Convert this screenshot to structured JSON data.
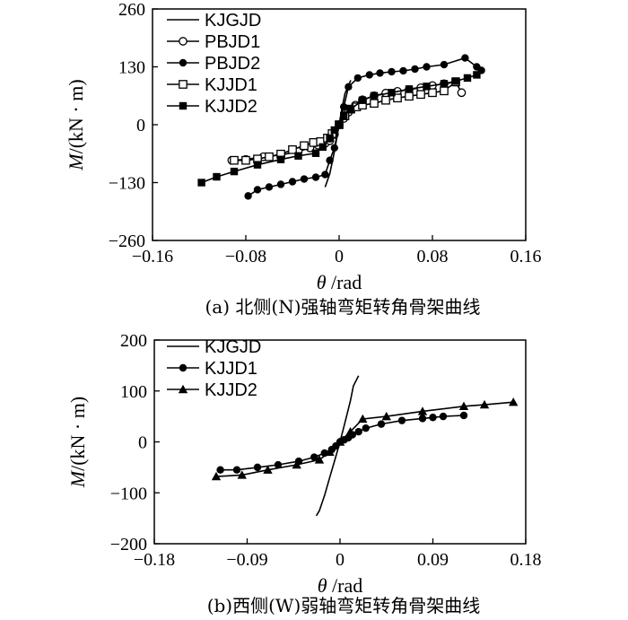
{
  "chart_data": [
    {
      "type": "line",
      "title": "(a) 北侧(N)强轴弯矩转角骨架曲线",
      "xlabel": "θ/rad",
      "ylabel": "M/(kN·m)",
      "xlim": [
        -0.16,
        0.16
      ],
      "ylim": [
        -260,
        260
      ],
      "xticks": [
        -0.16,
        -0.08,
        0,
        0.08,
        0.16
      ],
      "xtick_labels": [
        "−0.16",
        "−0.08",
        "0",
        "0.08",
        "0.16"
      ],
      "yticks": [
        -260,
        -130,
        0,
        130,
        260
      ],
      "ytick_labels": [
        "−260",
        "−130",
        "0",
        "130",
        "260"
      ],
      "grid": false,
      "legend_position": "top-left",
      "series": [
        {
          "name": "KJGJD",
          "marker": "none",
          "x": [
            -0.012,
            -0.008,
            -0.004,
            -0.002,
            0,
            0.002,
            0.005,
            0.01
          ],
          "y": [
            -140,
            -110,
            -60,
            -30,
            0,
            30,
            70,
            100
          ]
        },
        {
          "name": "PBJD1",
          "marker": "open-circle",
          "x": [
            -0.092,
            -0.08,
            -0.065,
            -0.05,
            -0.035,
            -0.025,
            -0.018,
            -0.012,
            -0.008,
            -0.004,
            0,
            0.004,
            0.008,
            0.014,
            0.02,
            0.03,
            0.04,
            0.05,
            0.06,
            0.07,
            0.08,
            0.09,
            0.1,
            0.105
          ],
          "y": [
            -80,
            -78,
            -72,
            -68,
            -60,
            -52,
            -46,
            -42,
            -36,
            -22,
            0,
            14,
            28,
            44,
            56,
            65,
            71,
            75,
            79,
            83,
            88,
            92,
            96,
            72
          ]
        },
        {
          "name": "PBJD2",
          "marker": "filled-circle",
          "x": [
            -0.078,
            -0.07,
            -0.06,
            -0.05,
            -0.04,
            -0.03,
            -0.02,
            -0.012,
            -0.008,
            -0.004,
            0,
            0.004,
            0.008,
            0.016,
            0.026,
            0.035,
            0.045,
            0.055,
            0.065,
            0.075,
            0.09,
            0.108,
            0.118,
            0.122
          ],
          "y": [
            -160,
            -146,
            -140,
            -134,
            -128,
            -122,
            -118,
            -112,
            -80,
            -52,
            0,
            40,
            85,
            105,
            112,
            116,
            119,
            121,
            125,
            130,
            135,
            150,
            130,
            122
          ]
        },
        {
          "name": "KJJD1",
          "marker": "open-square",
          "x": [
            -0.09,
            -0.08,
            -0.07,
            -0.06,
            -0.05,
            -0.04,
            -0.03,
            -0.022,
            -0.016,
            -0.01,
            -0.006,
            0,
            0.005,
            0.01,
            0.015,
            0.02,
            0.03,
            0.04,
            0.05,
            0.06,
            0.07,
            0.08,
            0.09,
            0.1
          ],
          "y": [
            -80,
            -80,
            -77,
            -72,
            -66,
            -56,
            -47,
            -40,
            -38,
            -30,
            -20,
            0,
            20,
            35,
            40,
            44,
            48,
            55,
            60,
            64,
            68,
            72,
            76,
            96
          ]
        },
        {
          "name": "KJJD2",
          "marker": "filled-square",
          "x": [
            -0.118,
            -0.105,
            -0.09,
            -0.07,
            -0.05,
            -0.035,
            -0.02,
            -0.014,
            -0.008,
            -0.004,
            0,
            0.004,
            0.01,
            0.02,
            0.03,
            0.045,
            0.06,
            0.075,
            0.09,
            0.1,
            0.11,
            0.118
          ],
          "y": [
            -130,
            -117,
            -105,
            -90,
            -78,
            -70,
            -64,
            -50,
            -30,
            -12,
            0,
            20,
            35,
            55,
            65,
            72,
            80,
            86,
            92,
            98,
            105,
            112
          ]
        }
      ]
    },
    {
      "type": "line",
      "title": "(b)西侧(W)弱轴弯矩转角骨架曲线",
      "xlabel": "θ/rad",
      "ylabel": "M/(kN·m)",
      "xlim": [
        -0.18,
        0.18
      ],
      "ylim": [
        -200,
        200
      ],
      "xticks": [
        -0.18,
        -0.09,
        0,
        0.09,
        0.18
      ],
      "xtick_labels": [
        "−0.18",
        "−0.09",
        "0",
        "0.09",
        "0.18"
      ],
      "yticks": [
        -200,
        -100,
        0,
        100,
        200
      ],
      "ytick_labels": [
        "−200",
        "−100",
        "0",
        "100",
        "200"
      ],
      "grid": false,
      "legend_position": "top-left",
      "series": [
        {
          "name": "KJGJD",
          "marker": "none",
          "x": [
            -0.023,
            -0.02,
            -0.015,
            -0.01,
            -0.005,
            0,
            0.005,
            0.01,
            0.013,
            0.018
          ],
          "y": [
            -145,
            -135,
            -105,
            -70,
            -35,
            0,
            40,
            80,
            110,
            130
          ]
        },
        {
          "name": "KJJD1",
          "marker": "filled-circle",
          "x": [
            -0.116,
            -0.1,
            -0.08,
            -0.06,
            -0.04,
            -0.025,
            -0.015,
            -0.008,
            -0.004,
            0,
            0.004,
            0.008,
            0.012,
            0.018,
            0.025,
            0.04,
            0.06,
            0.08,
            0.09,
            0.1,
            0.12
          ],
          "y": [
            -55,
            -55,
            -50,
            -45,
            -38,
            -30,
            -22,
            -15,
            -8,
            0,
            4,
            8,
            14,
            20,
            27,
            35,
            42,
            46,
            48,
            50,
            52
          ]
        },
        {
          "name": "KJJD2",
          "marker": "filled-triangle",
          "x": [
            -0.12,
            -0.095,
            -0.07,
            -0.042,
            -0.02,
            -0.01,
            0,
            0.01,
            0.022,
            0.045,
            0.08,
            0.12,
            0.14,
            0.168
          ],
          "y": [
            -68,
            -65,
            -55,
            -45,
            -35,
            -20,
            0,
            20,
            45,
            50,
            60,
            70,
            73,
            78
          ]
        }
      ]
    }
  ],
  "legend_labels_a": [
    "KJGJD",
    "PBJD1",
    "PBJD2",
    "KJJD1",
    "KJJD2"
  ],
  "legend_labels_b": [
    "KJGJD",
    "KJJD1",
    "KJJD2"
  ],
  "caption_a": "(a) 北侧(N)强轴弯矩转角骨架曲线",
  "caption_b": "(b)西侧(W)弱轴弯矩转角骨架曲线"
}
